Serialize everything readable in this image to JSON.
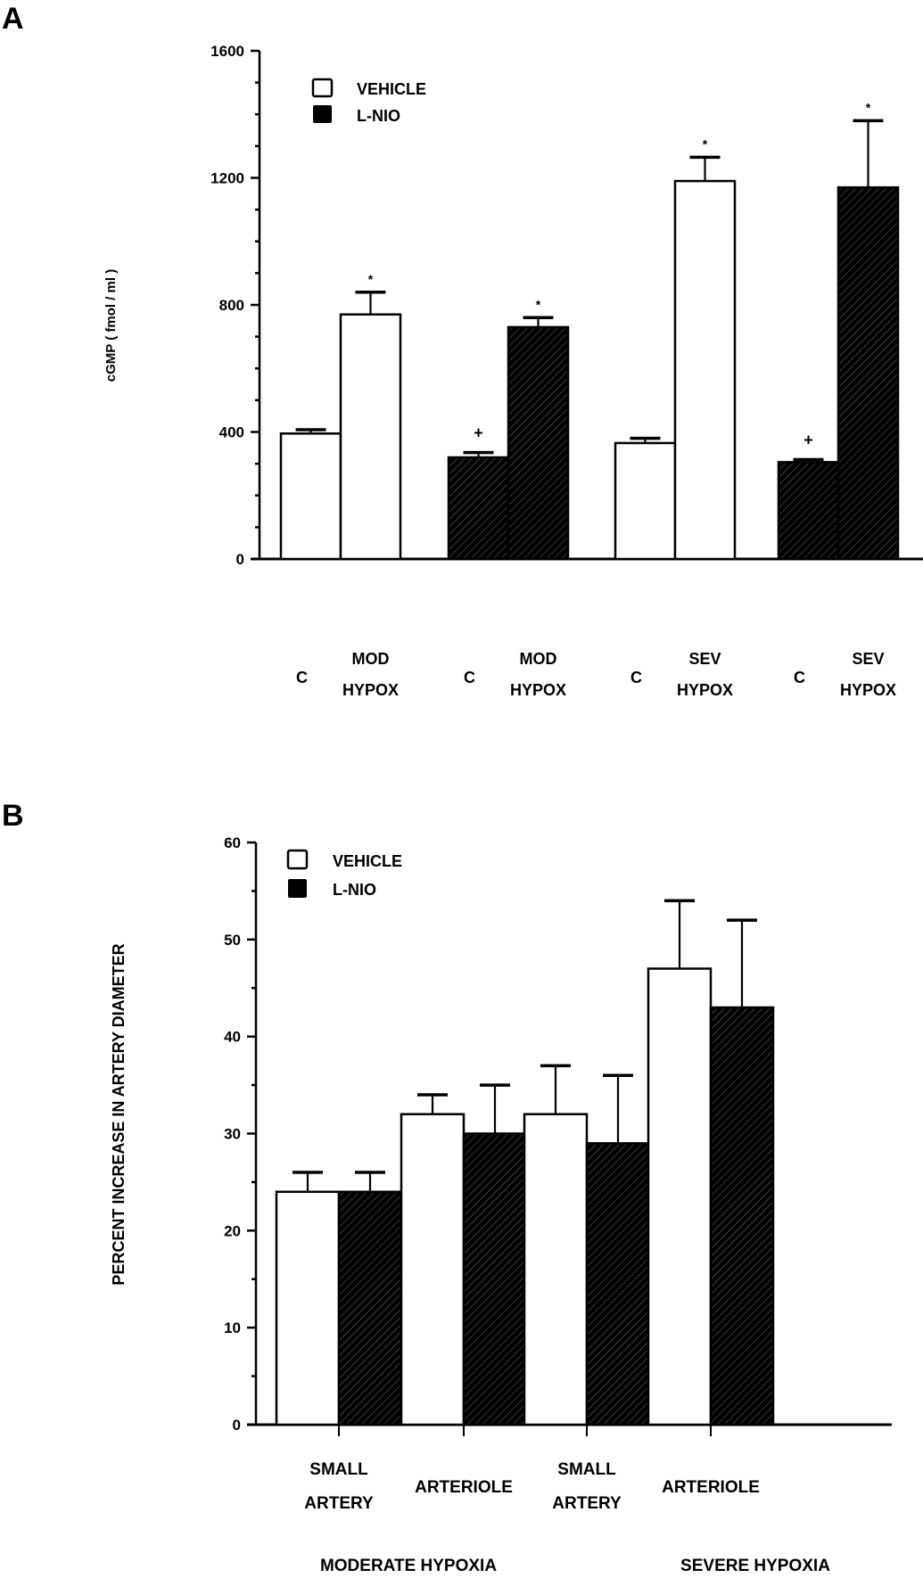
{
  "chart_data": [
    {
      "panel_label": "A",
      "type": "bar",
      "title": "",
      "ylabel": "cGMP ( fmol / ml )",
      "xlabel": "",
      "ylim": [
        0,
        1600
      ],
      "yticks": [
        0,
        400,
        800,
        1200,
        1600
      ],
      "ytick_labels": [
        "0",
        "400",
        "800",
        "1200",
        "1600"
      ],
      "minor_tick_step": 100,
      "grid": false,
      "legend": {
        "placement": "top-left",
        "entries": [
          {
            "name": "VEHICLE",
            "fill": "#ffffff"
          },
          {
            "name": "L-NIO",
            "fill": "#000000"
          }
        ]
      },
      "bars": [
        {
          "category_line1": "",
          "category_line2": "C",
          "series": "VEHICLE",
          "value": 395,
          "error": 12,
          "marker": ""
        },
        {
          "category_line1": "MOD",
          "category_line2": "HYPOX",
          "series": "VEHICLE",
          "value": 770,
          "error": 70,
          "marker": "*"
        },
        {
          "category_line1": "",
          "category_line2": "C",
          "series": "L-NIO",
          "value": 320,
          "error": 15,
          "marker": "+"
        },
        {
          "category_line1": "MOD",
          "category_line2": "HYPOX",
          "series": "L-NIO",
          "value": 730,
          "error": 30,
          "marker": "*"
        },
        {
          "category_line1": "",
          "category_line2": "C",
          "series": "VEHICLE",
          "value": 365,
          "error": 15,
          "marker": ""
        },
        {
          "category_line1": "SEV",
          "category_line2": "HYPOX",
          "series": "VEHICLE",
          "value": 1190,
          "error": 75,
          "marker": "*"
        },
        {
          "category_line1": "",
          "category_line2": "C",
          "series": "L-NIO",
          "value": 305,
          "error": 8,
          "marker": "+"
        },
        {
          "category_line1": "SEV",
          "category_line2": "HYPOX",
          "series": "L-NIO",
          "value": 1170,
          "error": 210,
          "marker": "*"
        }
      ]
    },
    {
      "panel_label": "B",
      "type": "bar",
      "title": "",
      "ylabel": "PERCENT INCREASE IN ARTERY DIAMETER",
      "xlabel": "",
      "ylim": [
        0,
        60
      ],
      "yticks": [
        0,
        10,
        20,
        30,
        40,
        50,
        60
      ],
      "ytick_labels": [
        "0",
        "10",
        "20",
        "30",
        "40",
        "50",
        "60"
      ],
      "minor_tick_step": 5,
      "grid": false,
      "legend": {
        "placement": "top-left",
        "entries": [
          {
            "name": "VEHICLE",
            "fill": "#ffffff"
          },
          {
            "name": "L-NIO",
            "fill": "#000000"
          }
        ]
      },
      "categories": [
        {
          "line1": "SMALL",
          "line2": "ARTERY"
        },
        {
          "line1": "",
          "line2": "ARTERIOLE"
        },
        {
          "line1": "SMALL",
          "line2": "ARTERY"
        },
        {
          "line1": "",
          "line2": "ARTERIOLE"
        }
      ],
      "groups": [
        "MODERATE HYPOXIA",
        "SEVERE HYPOXIA"
      ],
      "series": [
        {
          "name": "VEHICLE",
          "values": [
            24,
            32,
            32,
            47
          ],
          "errors": [
            2,
            2,
            5,
            7
          ]
        },
        {
          "name": "L-NIO",
          "values": [
            24,
            30,
            29,
            43
          ],
          "errors": [
            2,
            5,
            7,
            9
          ]
        }
      ]
    }
  ]
}
